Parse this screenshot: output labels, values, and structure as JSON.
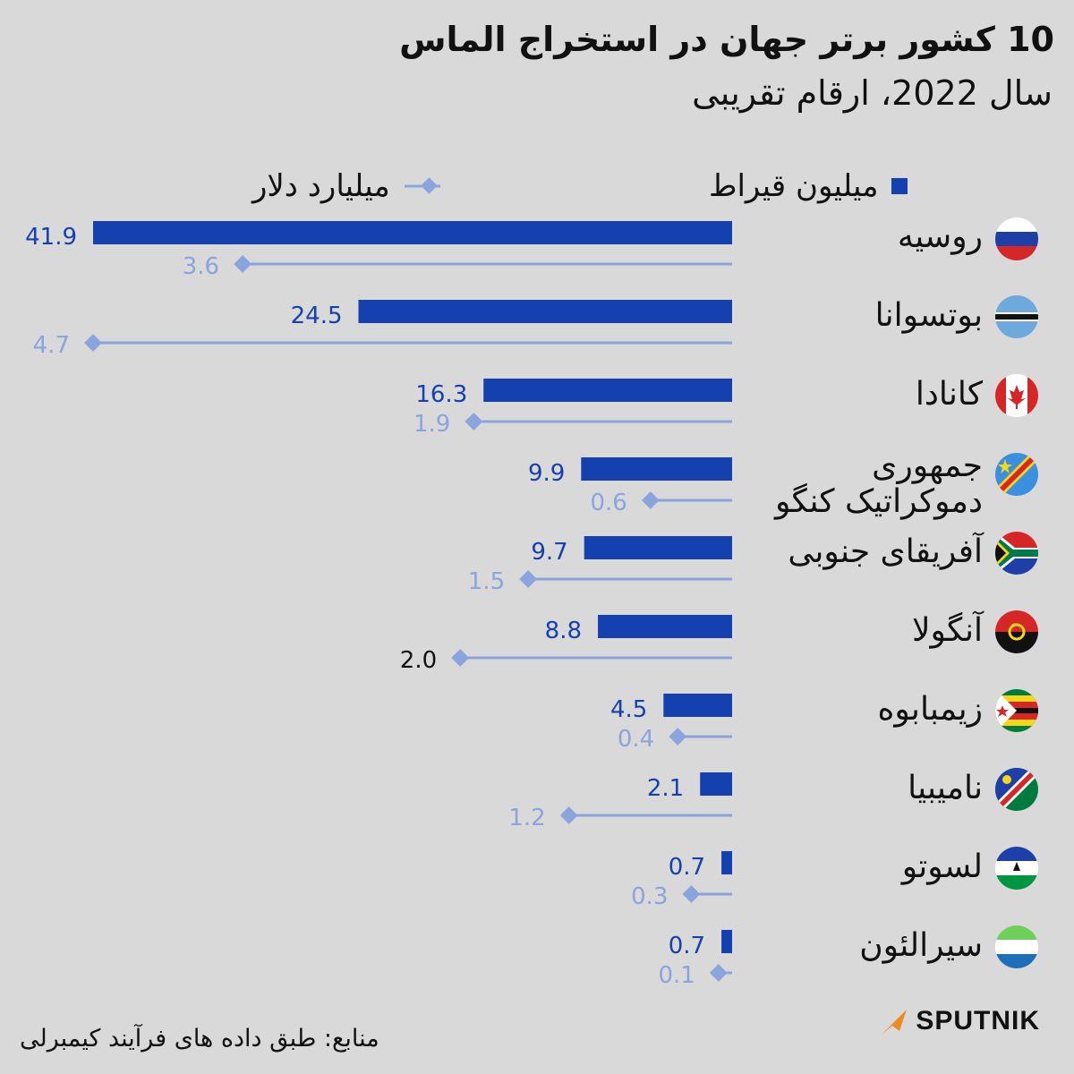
{
  "title": "10 کشور برتر جهان در استخراج الماس",
  "subtitle": "سال 2022، ارقام تقریبی",
  "legend": {
    "carats": "میلیون قیراط",
    "dollars": "میلیارد دلار"
  },
  "colors": {
    "carats": "#1540b0",
    "dollars": "#8aa4de",
    "highlight_label": "#111111",
    "background": "#d9d9d9"
  },
  "source": "منابع: طبق داده های فرآیند کیمبرلی",
  "logo": "SPUTNIK",
  "chart_data": {
    "type": "bar",
    "categories": [
      "روسیه",
      "بوتسوانا",
      "کانادا",
      "جمهوری دموکراتیک کنگو",
      "آفریقای جنوبی",
      "آنگولا",
      "زیمبابوه",
      "نامیبیا",
      "لسوتو",
      "سیرالئون"
    ],
    "category_lines": [
      [
        "روسیه"
      ],
      [
        "بوتسوانا"
      ],
      [
        "کانادا"
      ],
      [
        "جمهوری",
        "دموکراتیک کنگو"
      ],
      [
        "آفریقای جنوبی"
      ],
      [
        "آنگولا"
      ],
      [
        "زیمبابوه"
      ],
      [
        "نامیبیا"
      ],
      [
        "لسوتو"
      ],
      [
        "سیرالئون"
      ]
    ],
    "series": [
      {
        "name": "میلیون قیراط",
        "values": [
          41.9,
          24.5,
          16.3,
          9.9,
          9.7,
          8.8,
          4.5,
          2.1,
          0.7,
          0.7
        ],
        "labels": [
          "41.9",
          "24.5",
          "16.3",
          "9.9",
          "9.7",
          "8.8",
          "4.5",
          "2.1",
          "0.7",
          "0.7"
        ]
      },
      {
        "name": "میلیارد دلار",
        "values": [
          3.6,
          4.7,
          1.9,
          0.6,
          1.5,
          2.0,
          0.4,
          1.2,
          0.3,
          0.1
        ],
        "labels": [
          "3.6",
          "4.7",
          "1.9",
          "0.6",
          "1.5",
          "2.0",
          "0.4",
          "1.2",
          "0.3",
          "0.1"
        ]
      }
    ],
    "flags": [
      "russia-flag-icon",
      "botswana-flag-icon",
      "canada-flag-icon",
      "dr-congo-flag-icon",
      "south-africa-flag-icon",
      "angola-flag-icon",
      "zimbabwe-flag-icon",
      "namibia-flag-icon",
      "lesotho-flag-icon",
      "sierra-leone-flag-icon"
    ],
    "orientation": "horizontal, bars extend right-to-left",
    "legend_position": "top"
  }
}
